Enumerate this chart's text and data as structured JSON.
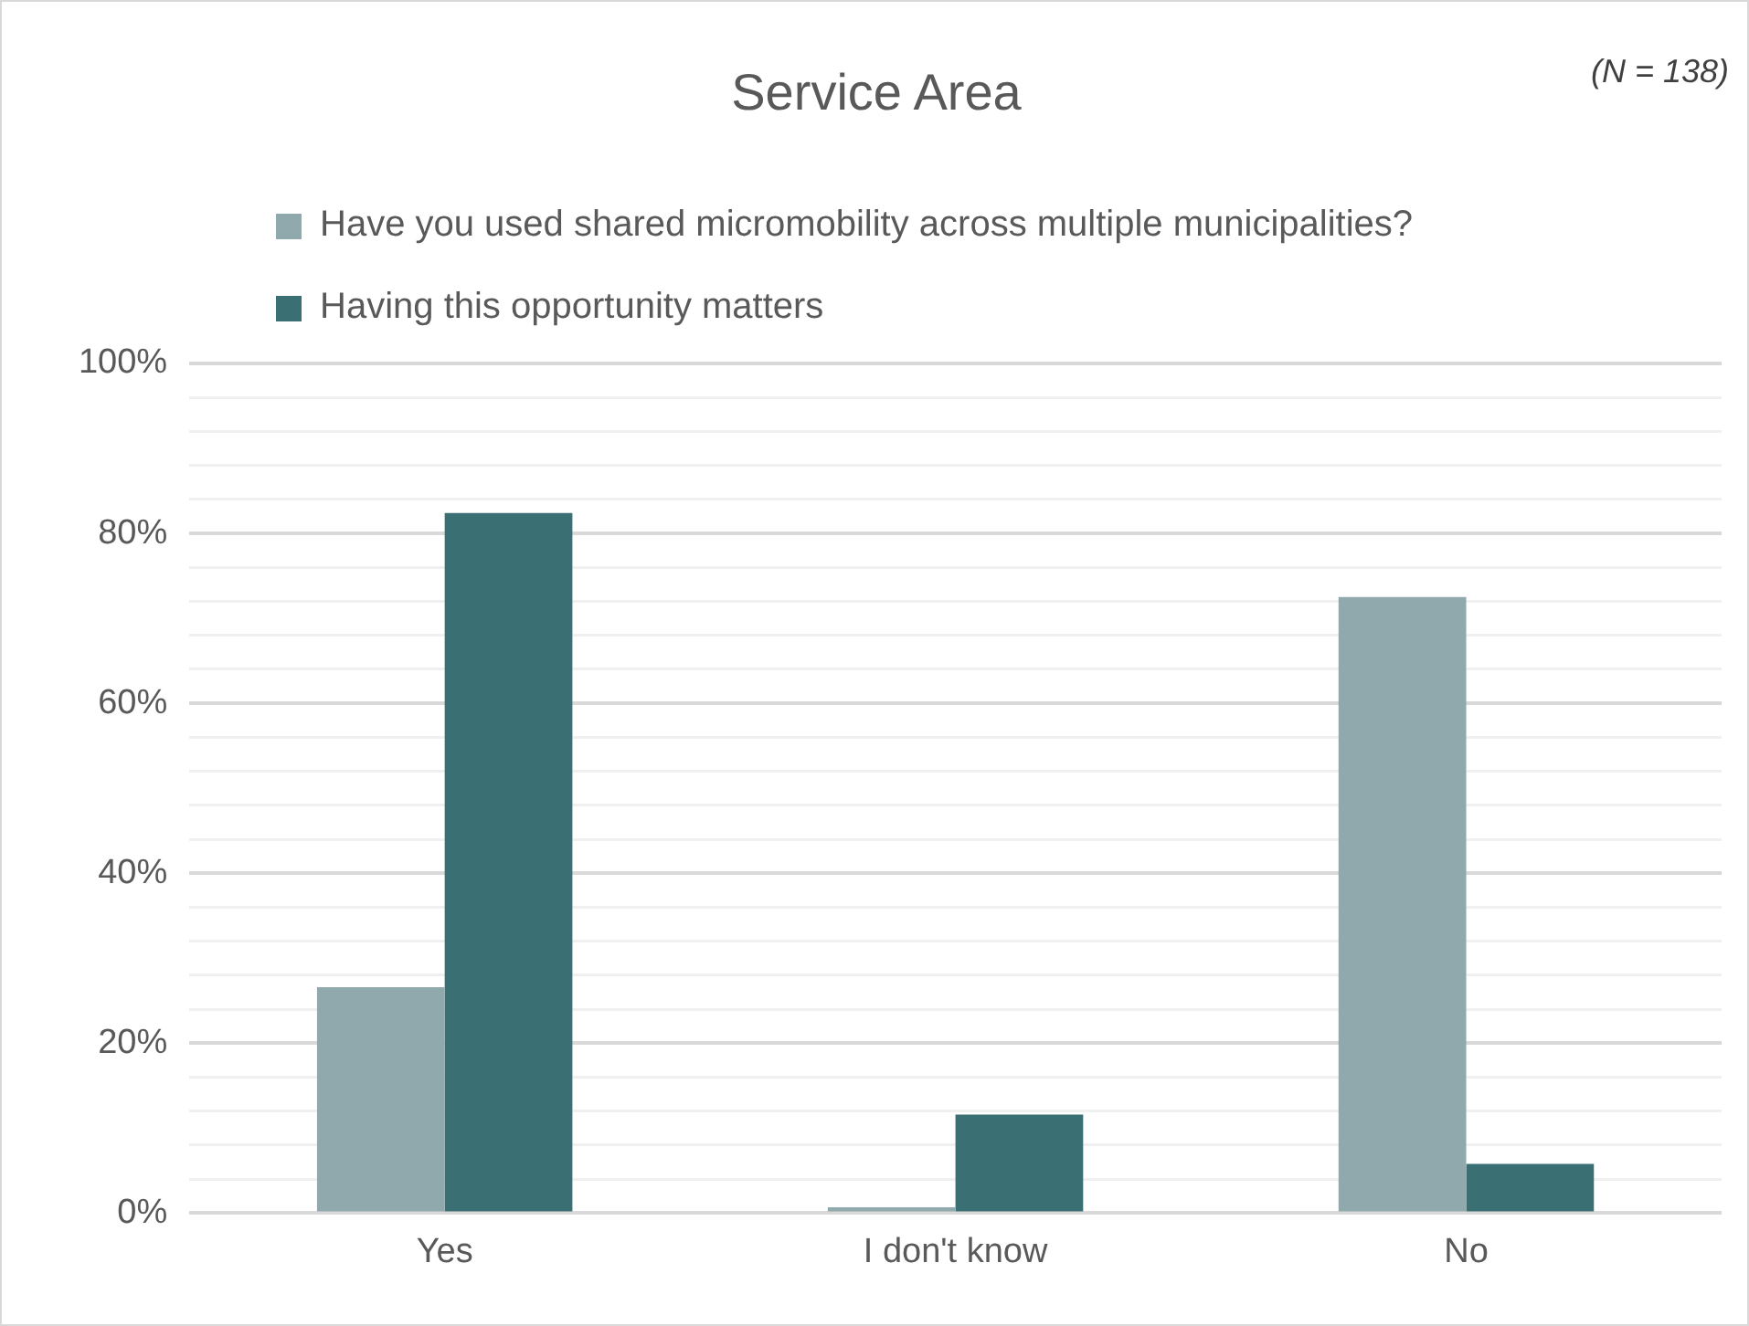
{
  "chart_data": {
    "type": "bar",
    "title": "Service Area",
    "annotations": [
      "(N = 138)"
    ],
    "categories": [
      "Yes",
      "I don't know",
      "No"
    ],
    "series": [
      {
        "name": "Have you used shared micromobility across multiple municipalities?",
        "color": "#90a9ac",
        "values": [
          26.6,
          0.7,
          72.5
        ]
      },
      {
        "name": "Having this opportunity matters",
        "color": "#3a7073",
        "values": [
          82.4,
          11.6,
          5.8
        ]
      }
    ],
    "ylim": [
      0,
      100
    ],
    "yticks": [
      {
        "value": 0,
        "label": "0%"
      },
      {
        "value": 4,
        "label": null
      },
      {
        "value": 8,
        "label": null
      },
      {
        "value": 12,
        "label": null
      },
      {
        "value": 16,
        "label": null
      },
      {
        "value": 20,
        "label": "20%"
      },
      {
        "value": 24,
        "label": null
      },
      {
        "value": 28,
        "label": null
      },
      {
        "value": 32,
        "label": null
      },
      {
        "value": 36,
        "label": null
      },
      {
        "value": 40,
        "label": "40%"
      },
      {
        "value": 44,
        "label": null
      },
      {
        "value": 48,
        "label": null
      },
      {
        "value": 52,
        "label": null
      },
      {
        "value": 56,
        "label": null
      },
      {
        "value": 60,
        "label": "60%"
      },
      {
        "value": 64,
        "label": null
      },
      {
        "value": 68,
        "label": null
      },
      {
        "value": 72,
        "label": null
      },
      {
        "value": 76,
        "label": null
      },
      {
        "value": 80,
        "label": "80%"
      },
      {
        "value": 84,
        "label": null
      },
      {
        "value": 88,
        "label": null
      },
      {
        "value": 92,
        "label": null
      },
      {
        "value": 96,
        "label": null
      },
      {
        "value": 100,
        "label": "100%"
      }
    ],
    "grid": "y",
    "legend": "top"
  }
}
